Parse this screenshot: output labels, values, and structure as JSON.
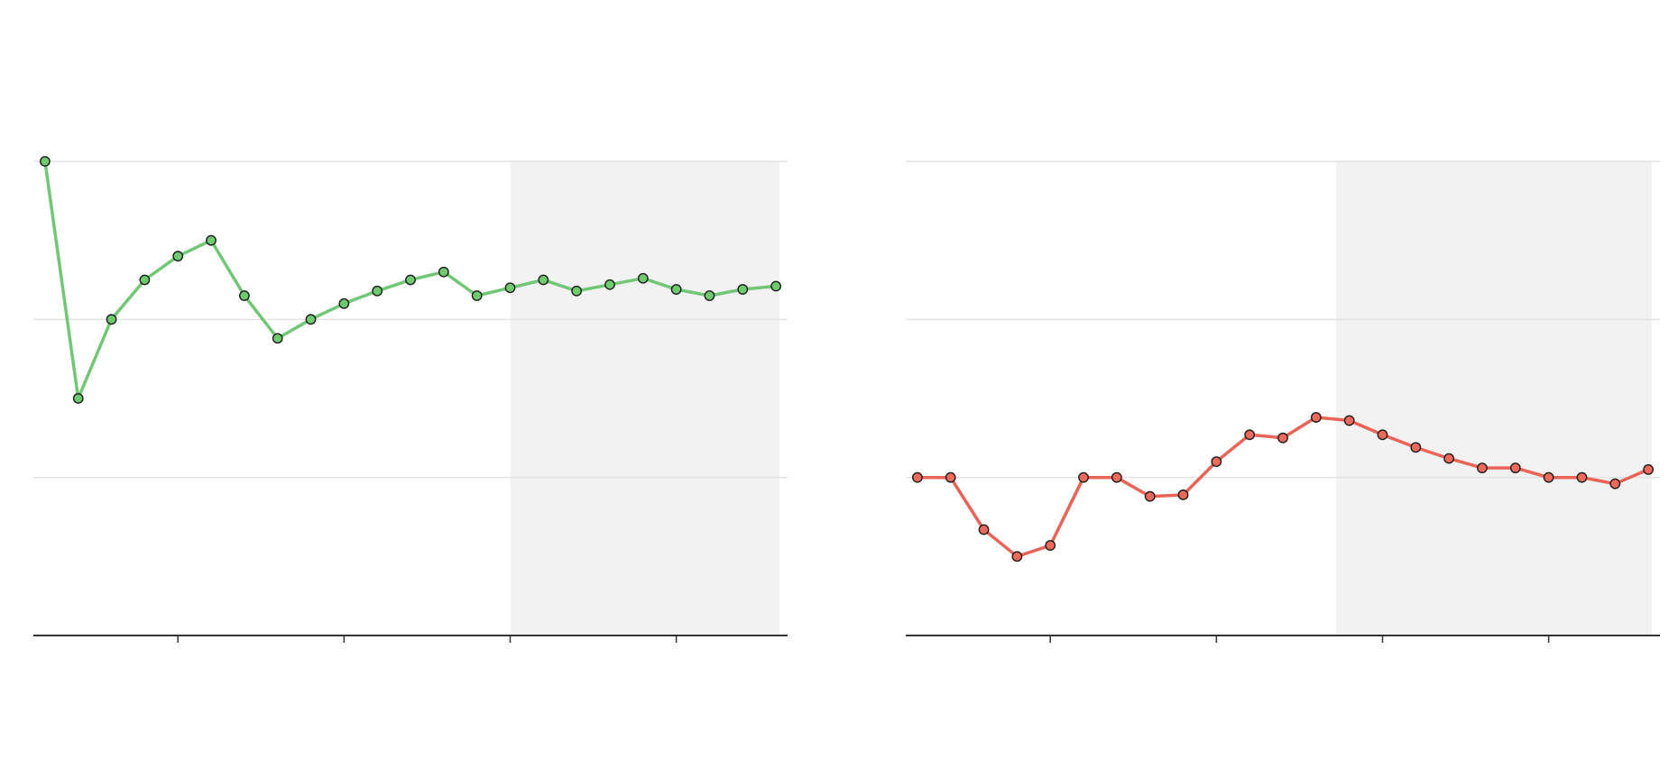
{
  "chart_data": [
    {
      "type": "line",
      "x": [
        0,
        1,
        2,
        3,
        4,
        5,
        6,
        7,
        8,
        9,
        10,
        11,
        12,
        13,
        14,
        15,
        16,
        17,
        18,
        19,
        20,
        21,
        22
      ],
      "values": [
        90.0,
        75.0,
        80.0,
        82.5,
        84.0,
        85.0,
        81.5,
        78.8,
        80.0,
        81.0,
        81.8,
        82.5,
        83.0,
        81.5,
        82.0,
        82.5,
        81.8,
        82.2,
        82.6,
        81.9,
        81.5,
        81.9,
        82.1
      ],
      "ylim": [
        60,
        90
      ],
      "gridlines": [
        70,
        80,
        90
      ],
      "xlim": [
        -0.35,
        22.35
      ],
      "xticks": [
        4,
        9,
        14,
        19
      ],
      "shaded_region": [
        14,
        22.1
      ],
      "grid": true,
      "line_color": "#72c776",
      "marker_color": "#6ec96f",
      "shade_color": "#f2f2f2"
    },
    {
      "type": "line",
      "x": [
        0,
        1,
        2,
        3,
        4,
        5,
        6,
        7,
        8,
        9,
        10,
        11,
        12,
        13,
        14,
        15,
        16,
        17,
        18,
        19,
        20,
        21,
        22
      ],
      "values": [
        70.0,
        70.0,
        66.7,
        65.0,
        65.7,
        70.0,
        70.0,
        68.8,
        68.9,
        71.0,
        72.7,
        72.5,
        73.8,
        73.6,
        72.7,
        71.9,
        71.2,
        70.6,
        70.6,
        70.0,
        70.0,
        69.6,
        70.5
      ],
      "ylim": [
        60,
        90
      ],
      "gridlines": [
        70,
        80,
        90
      ],
      "xlim": [
        -0.35,
        22.35
      ],
      "xticks": [
        4,
        9,
        14,
        19
      ],
      "shaded_region": [
        12.6,
        22.1
      ],
      "grid": true,
      "line_color": "#ea6357",
      "marker_color": "#ec6a5c",
      "shade_color": "#f2f2f2"
    }
  ]
}
